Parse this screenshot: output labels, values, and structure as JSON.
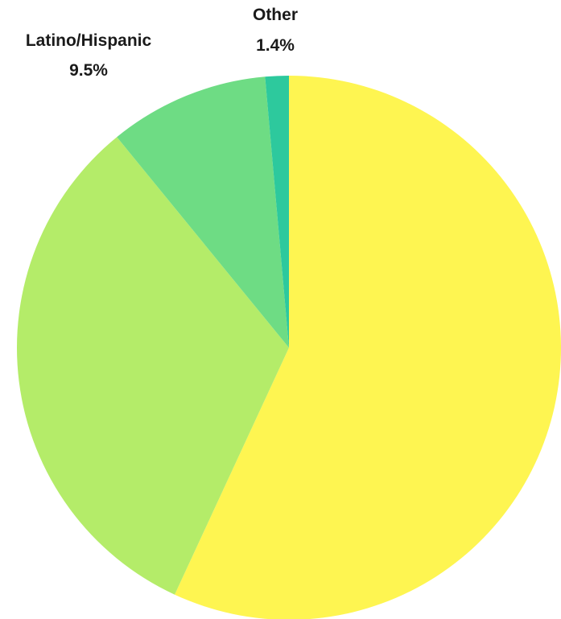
{
  "chart_data": {
    "type": "pie",
    "title": "",
    "start_angle_deg": 0,
    "direction": "clockwise",
    "slices": [
      {
        "name": "",
        "value": 56.9,
        "color": "#FEF551",
        "label": "",
        "value_label": ""
      },
      {
        "name": "",
        "value": 32.2,
        "color": "#B4EC69",
        "label": "",
        "value_label": ""
      },
      {
        "name": "Latino/Hispanic",
        "value": 9.5,
        "color": "#6EDC84",
        "label": "Latino/Hispanic",
        "value_label": "9.5%"
      },
      {
        "name": "Other",
        "value": 1.4,
        "color": "#2DC99D",
        "label": "Other",
        "value_label": "1.4%"
      }
    ],
    "legend": false
  }
}
